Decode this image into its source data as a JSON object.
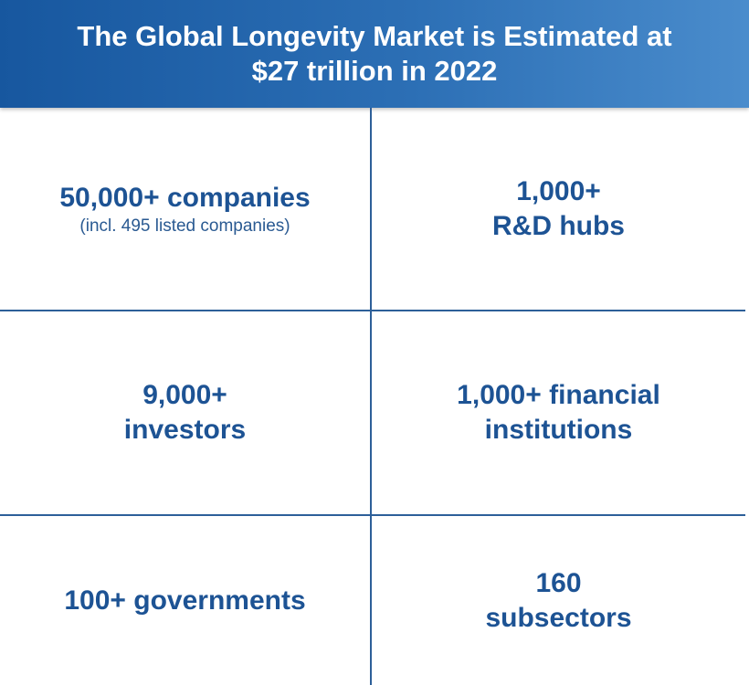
{
  "header": {
    "title_lines": [
      "The Global Longevity Market is Estimated at",
      "$27 trillion in 2022"
    ]
  },
  "grid": {
    "cells": [
      {
        "lines": [
          "50,000+ companies"
        ],
        "note": "(incl. 495 listed companies)"
      },
      {
        "lines": [
          "1,000+",
          "R&D hubs"
        ]
      },
      {
        "lines": [
          "9,000+",
          "investors"
        ]
      },
      {
        "lines": [
          "1,000+ financial",
          "institutions"
        ]
      },
      {
        "lines": [
          "100+ governments"
        ]
      },
      {
        "lines": [
          "160",
          "subsectors"
        ]
      }
    ]
  }
}
